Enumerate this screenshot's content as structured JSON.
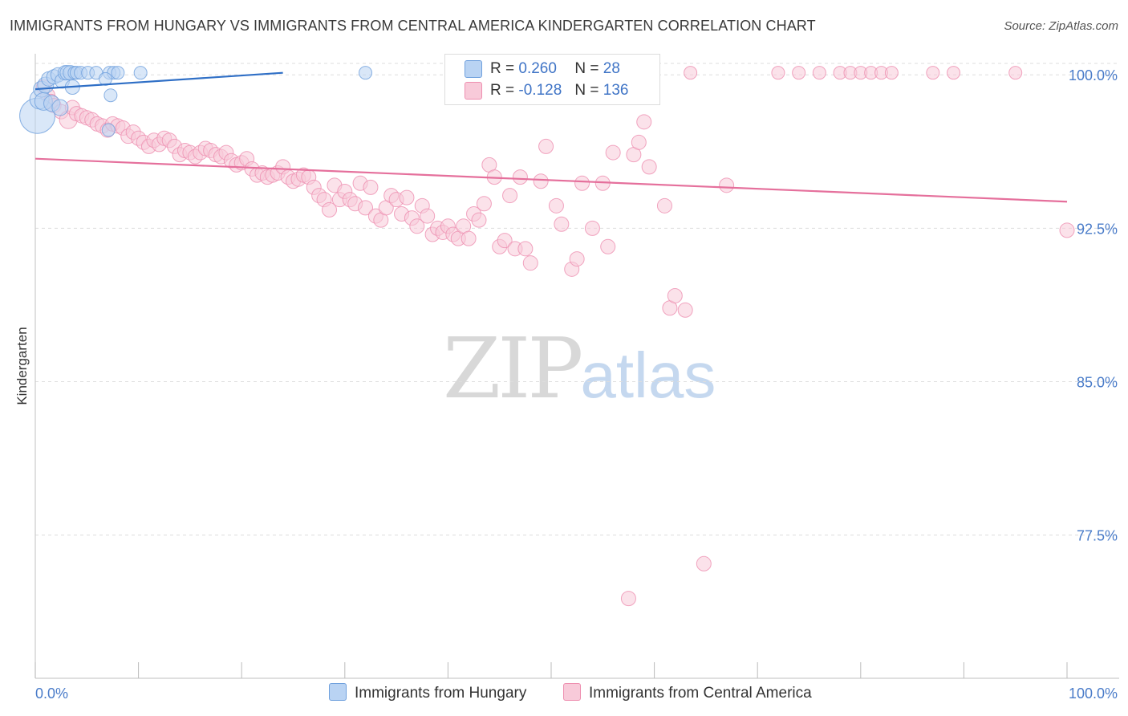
{
  "title": "IMMIGRANTS FROM HUNGARY VS IMMIGRANTS FROM CENTRAL AMERICA KINDERGARTEN CORRELATION CHART",
  "source": "Source: ZipAtlas.com",
  "watermark": {
    "zip": "ZIP",
    "atlas": "atlas"
  },
  "legend": {
    "hungary": {
      "r_label": "R =",
      "r_value": "0.260",
      "n_label": "N =",
      "n_value": "28"
    },
    "central_america": {
      "r_label": "R =",
      "r_value": "-0.128",
      "n_label": "N =",
      "n_value": "136"
    }
  },
  "colors": {
    "hungary": "#6fa0dd",
    "hungary_fill": "#b9d3f3",
    "central_america": "#ee8fb0",
    "central_america_fill": "#f8cad9",
    "axis_text": "#4a7cc9",
    "hungary_line": "#2f6fc6",
    "ca_line": "#e5709c"
  },
  "chart_data": {
    "type": "scatter",
    "title": "IMMIGRANTS FROM HUNGARY VS IMMIGRANTS FROM CENTRAL AMERICA KINDERGARTEN CORRELATION CHART",
    "xlabel": "",
    "ylabel": "Kindergarten",
    "xlim": [
      0,
      100
    ],
    "ylim": [
      70.5,
      101.5
    ],
    "x_tick_labels": [
      "0.0%",
      "100.0%"
    ],
    "y_ticks": [
      100.0,
      92.5,
      85.0,
      77.5
    ],
    "y_tick_labels": [
      "100.0%",
      "92.5%",
      "85.0%",
      "77.5%"
    ],
    "series": [
      {
        "name": "Immigrants from Hungary",
        "trend": {
          "x": [
            0,
            24
          ],
          "y": [
            99.3,
            100.1
          ]
        },
        "points": [
          [
            0.2,
            98.0,
            22
          ],
          [
            0.4,
            98.8,
            12
          ],
          [
            0.6,
            99.3,
            10
          ],
          [
            0.8,
            98.7,
            11
          ],
          [
            1.0,
            99.5,
            10
          ],
          [
            1.3,
            99.8,
            9
          ],
          [
            1.6,
            98.6,
            10
          ],
          [
            1.8,
            99.9,
            9
          ],
          [
            2.2,
            100.0,
            9
          ],
          [
            2.4,
            98.4,
            10
          ],
          [
            2.6,
            99.7,
            9
          ],
          [
            2.9,
            100.1,
            9
          ],
          [
            3.1,
            100.1,
            9
          ],
          [
            3.4,
            100.1,
            9
          ],
          [
            3.6,
            99.4,
            9
          ],
          [
            3.8,
            100.1,
            8
          ],
          [
            4.0,
            100.1,
            8
          ],
          [
            4.4,
            100.1,
            8
          ],
          [
            5.1,
            100.1,
            8
          ],
          [
            5.9,
            100.1,
            8
          ],
          [
            7.2,
            100.1,
            8
          ],
          [
            7.6,
            100.1,
            8
          ],
          [
            8.0,
            100.1,
            8
          ],
          [
            10.2,
            100.1,
            8
          ],
          [
            7.3,
            99.0,
            8
          ],
          [
            6.8,
            99.8,
            8
          ],
          [
            7.1,
            97.3,
            8
          ],
          [
            32.0,
            100.1,
            8
          ]
        ]
      },
      {
        "name": "Immigrants from Central America",
        "trend": {
          "x": [
            0,
            100
          ],
          "y": [
            95.9,
            93.8
          ]
        },
        "points": [
          [
            0.8,
            99.4,
            9
          ],
          [
            1.2,
            99.0,
            9
          ],
          [
            1.5,
            98.7,
            9
          ],
          [
            1.8,
            98.5,
            9
          ],
          [
            2.5,
            98.2,
            9
          ],
          [
            3.2,
            97.8,
            11
          ],
          [
            3.6,
            98.4,
            9
          ],
          [
            4.0,
            98.1,
            9
          ],
          [
            4.5,
            98.0,
            9
          ],
          [
            5.0,
            97.9,
            9
          ],
          [
            5.5,
            97.8,
            9
          ],
          [
            6.0,
            97.6,
            9
          ],
          [
            6.5,
            97.5,
            9
          ],
          [
            7.0,
            97.3,
            9
          ],
          [
            7.5,
            97.6,
            9
          ],
          [
            8.0,
            97.5,
            9
          ],
          [
            8.5,
            97.4,
            9
          ],
          [
            9.0,
            97.0,
            9
          ],
          [
            9.5,
            97.2,
            9
          ],
          [
            10.0,
            96.9,
            9
          ],
          [
            10.5,
            96.7,
            9
          ],
          [
            11.0,
            96.5,
            9
          ],
          [
            11.5,
            96.8,
            9
          ],
          [
            12.0,
            96.6,
            9
          ],
          [
            12.5,
            96.9,
            9
          ],
          [
            13.0,
            96.8,
            9
          ],
          [
            13.5,
            96.5,
            9
          ],
          [
            14.0,
            96.1,
            9
          ],
          [
            14.5,
            96.3,
            9
          ],
          [
            15.0,
            96.2,
            9
          ],
          [
            15.5,
            96.0,
            9
          ],
          [
            16.0,
            96.2,
            9
          ],
          [
            16.5,
            96.4,
            9
          ],
          [
            17.0,
            96.3,
            9
          ],
          [
            17.5,
            96.1,
            9
          ],
          [
            18.0,
            96.0,
            9
          ],
          [
            18.5,
            96.2,
            9
          ],
          [
            19.0,
            95.8,
            9
          ],
          [
            19.5,
            95.6,
            9
          ],
          [
            20.0,
            95.7,
            9
          ],
          [
            20.5,
            95.9,
            9
          ],
          [
            21.0,
            95.4,
            9
          ],
          [
            21.5,
            95.1,
            9
          ],
          [
            22.0,
            95.2,
            9
          ],
          [
            22.5,
            95.0,
            9
          ],
          [
            23.0,
            95.1,
            9
          ],
          [
            23.5,
            95.2,
            9
          ],
          [
            24.0,
            95.5,
            9
          ],
          [
            24.5,
            95.0,
            9
          ],
          [
            25.0,
            94.8,
            9
          ],
          [
            25.5,
            94.9,
            9
          ],
          [
            26.0,
            95.1,
            9
          ],
          [
            26.5,
            95.0,
            9
          ],
          [
            27.0,
            94.5,
            9
          ],
          [
            27.5,
            94.1,
            9
          ],
          [
            28.0,
            93.9,
            9
          ],
          [
            28.5,
            93.4,
            9
          ],
          [
            29.0,
            94.6,
            9
          ],
          [
            29.5,
            93.9,
            9
          ],
          [
            30.0,
            94.3,
            9
          ],
          [
            30.5,
            93.9,
            9
          ],
          [
            31.0,
            93.7,
            9
          ],
          [
            31.5,
            94.7,
            9
          ],
          [
            32.0,
            93.5,
            9
          ],
          [
            32.5,
            94.5,
            9
          ],
          [
            33.0,
            93.1,
            9
          ],
          [
            33.5,
            92.9,
            9
          ],
          [
            34.0,
            93.5,
            9
          ],
          [
            34.5,
            94.1,
            9
          ],
          [
            35.0,
            93.9,
            9
          ],
          [
            35.5,
            93.2,
            9
          ],
          [
            36.0,
            94.0,
            9
          ],
          [
            36.5,
            93.0,
            9
          ],
          [
            37.0,
            92.6,
            9
          ],
          [
            37.5,
            93.6,
            9
          ],
          [
            38.0,
            93.1,
            9
          ],
          [
            38.5,
            92.2,
            9
          ],
          [
            39.0,
            92.5,
            9
          ],
          [
            39.5,
            92.3,
            9
          ],
          [
            40.0,
            92.6,
            9
          ],
          [
            40.5,
            92.2,
            9
          ],
          [
            41.0,
            92.0,
            9
          ],
          [
            41.5,
            92.6,
            9
          ],
          [
            42.0,
            92.0,
            9
          ],
          [
            42.5,
            93.2,
            9
          ],
          [
            43.0,
            92.9,
            9
          ],
          [
            43.5,
            93.7,
            9
          ],
          [
            44.0,
            95.6,
            9
          ],
          [
            44.5,
            95.0,
            9
          ],
          [
            45.0,
            91.6,
            9
          ],
          [
            45.5,
            91.9,
            9
          ],
          [
            46.0,
            94.1,
            9
          ],
          [
            46.5,
            91.5,
            9
          ],
          [
            47.0,
            95.0,
            9
          ],
          [
            47.5,
            91.5,
            9
          ],
          [
            48.0,
            90.8,
            9
          ],
          [
            48.5,
            100.1,
            8
          ],
          [
            49.0,
            94.8,
            9
          ],
          [
            49.5,
            96.5,
            9
          ],
          [
            50.0,
            100.1,
            8
          ],
          [
            50.5,
            93.6,
            9
          ],
          [
            51.0,
            92.7,
            9
          ],
          [
            51.5,
            99.0,
            9
          ],
          [
            52.0,
            90.5,
            9
          ],
          [
            52.5,
            91.0,
            9
          ],
          [
            53.0,
            94.7,
            9
          ],
          [
            54.0,
            92.5,
            9
          ],
          [
            55.0,
            94.7,
            9
          ],
          [
            55.5,
            91.6,
            9
          ],
          [
            56.0,
            96.2,
            9
          ],
          [
            57.0,
            100.1,
            8
          ],
          [
            58.0,
            96.1,
            9
          ],
          [
            58.5,
            96.7,
            9
          ],
          [
            59.0,
            97.7,
            9
          ],
          [
            59.5,
            95.5,
            9
          ],
          [
            61.0,
            93.6,
            9
          ],
          [
            61.5,
            88.6,
            9
          ],
          [
            62.0,
            89.2,
            9
          ],
          [
            63.0,
            88.5,
            9
          ],
          [
            63.5,
            100.1,
            8
          ],
          [
            64.8,
            76.1,
            9
          ],
          [
            67.0,
            94.6,
            9
          ],
          [
            72.0,
            100.1,
            8
          ],
          [
            74.0,
            100.1,
            8
          ],
          [
            76.0,
            100.1,
            8
          ],
          [
            78.0,
            100.1,
            8
          ],
          [
            79.0,
            100.1,
            8
          ],
          [
            80.0,
            100.1,
            8
          ],
          [
            81.0,
            100.1,
            8
          ],
          [
            82.0,
            100.1,
            8
          ],
          [
            83.0,
            100.1,
            8
          ],
          [
            87.0,
            100.1,
            8
          ],
          [
            89.0,
            100.1,
            8
          ],
          [
            100.0,
            92.4,
            9
          ],
          [
            57.5,
            74.4,
            9
          ],
          [
            95.0,
            100.1,
            8
          ]
        ]
      }
    ]
  },
  "bottom_legend": {
    "hungary": "Immigrants from Hungary",
    "central_america": "Immigrants from Central America"
  }
}
